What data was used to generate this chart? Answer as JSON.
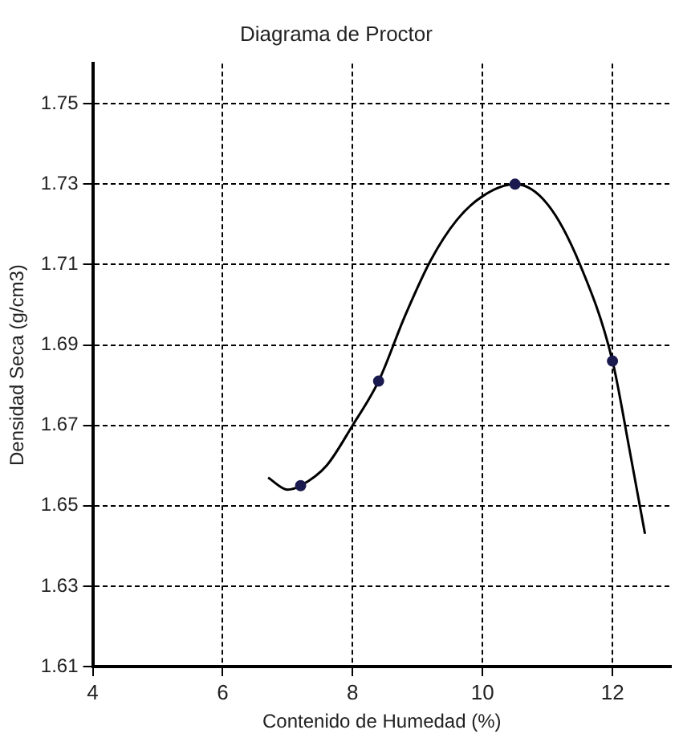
{
  "chart_data": {
    "type": "scatter",
    "title": "Diagrama de Proctor",
    "xlabel": "Contenido de Humedad (%)",
    "ylabel": "Densidad Seca (g/cm3)",
    "xlim": [
      4,
      12.9
    ],
    "xticks": [
      4,
      6,
      8,
      10,
      12
    ],
    "ylim": [
      1.61,
      1.76
    ],
    "yticks": [
      1.61,
      1.63,
      1.65,
      1.67,
      1.69,
      1.71,
      1.73,
      1.75
    ],
    "grid": true,
    "legend": false,
    "marker": "circle",
    "series": [
      {
        "color": "#1a1a4e",
        "x": [
          7.2,
          8.4,
          10.5,
          12.0
        ],
        "values": [
          1.655,
          1.681,
          1.73,
          1.686
        ]
      },
      {
        "type": "line",
        "color": "#000000",
        "line_style": "solid",
        "marker": "none",
        "x": [
          6.7,
          7.0,
          7.2,
          7.6,
          8.0,
          8.4,
          8.8,
          9.2,
          9.6,
          10.0,
          10.5,
          11.0,
          11.5,
          12.0,
          12.25,
          12.5
        ],
        "values": [
          1.657,
          1.654,
          1.655,
          1.66,
          1.67,
          1.681,
          1.697,
          1.711,
          1.721,
          1.727,
          1.73,
          1.725,
          1.71,
          1.686,
          1.665,
          1.643
        ]
      }
    ]
  }
}
